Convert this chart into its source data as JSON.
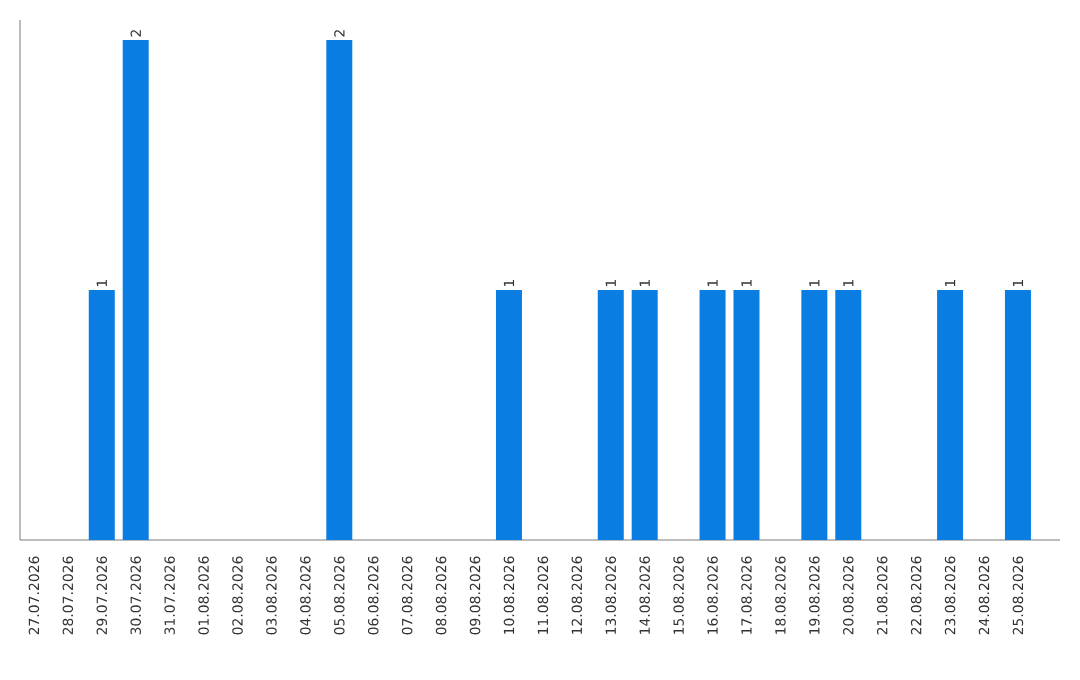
{
  "chart_data": {
    "type": "bar",
    "categories": [
      "27.07.2026",
      "28.07.2026",
      "29.07.2026",
      "30.07.2026",
      "31.07.2026",
      "01.08.2026",
      "02.08.2026",
      "03.08.2026",
      "04.08.2026",
      "05.08.2026",
      "06.08.2026",
      "07.08.2026",
      "08.08.2026",
      "09.08.2026",
      "10.08.2026",
      "11.08.2026",
      "12.08.2026",
      "13.08.2026",
      "14.08.2026",
      "15.08.2026",
      "16.08.2026",
      "17.08.2026",
      "18.08.2026",
      "19.08.2026",
      "20.08.2026",
      "21.08.2026",
      "22.08.2026",
      "23.08.2026",
      "24.08.2026",
      "25.08.2026"
    ],
    "values": [
      0,
      0,
      1,
      2,
      0,
      0,
      0,
      0,
      0,
      2,
      0,
      0,
      0,
      0,
      1,
      0,
      0,
      1,
      1,
      0,
      1,
      1,
      0,
      1,
      1,
      0,
      0,
      1,
      0,
      1
    ],
    "value_labels": [
      null,
      null,
      "1",
      "2",
      null,
      null,
      null,
      null,
      null,
      "2",
      null,
      null,
      null,
      null,
      "1",
      null,
      null,
      "1",
      "1",
      null,
      "1",
      "1",
      null,
      "1",
      "1",
      null,
      null,
      "1",
      null,
      "1"
    ],
    "color": "#0a7de3",
    "ylim": [
      0,
      2.08
    ]
  }
}
